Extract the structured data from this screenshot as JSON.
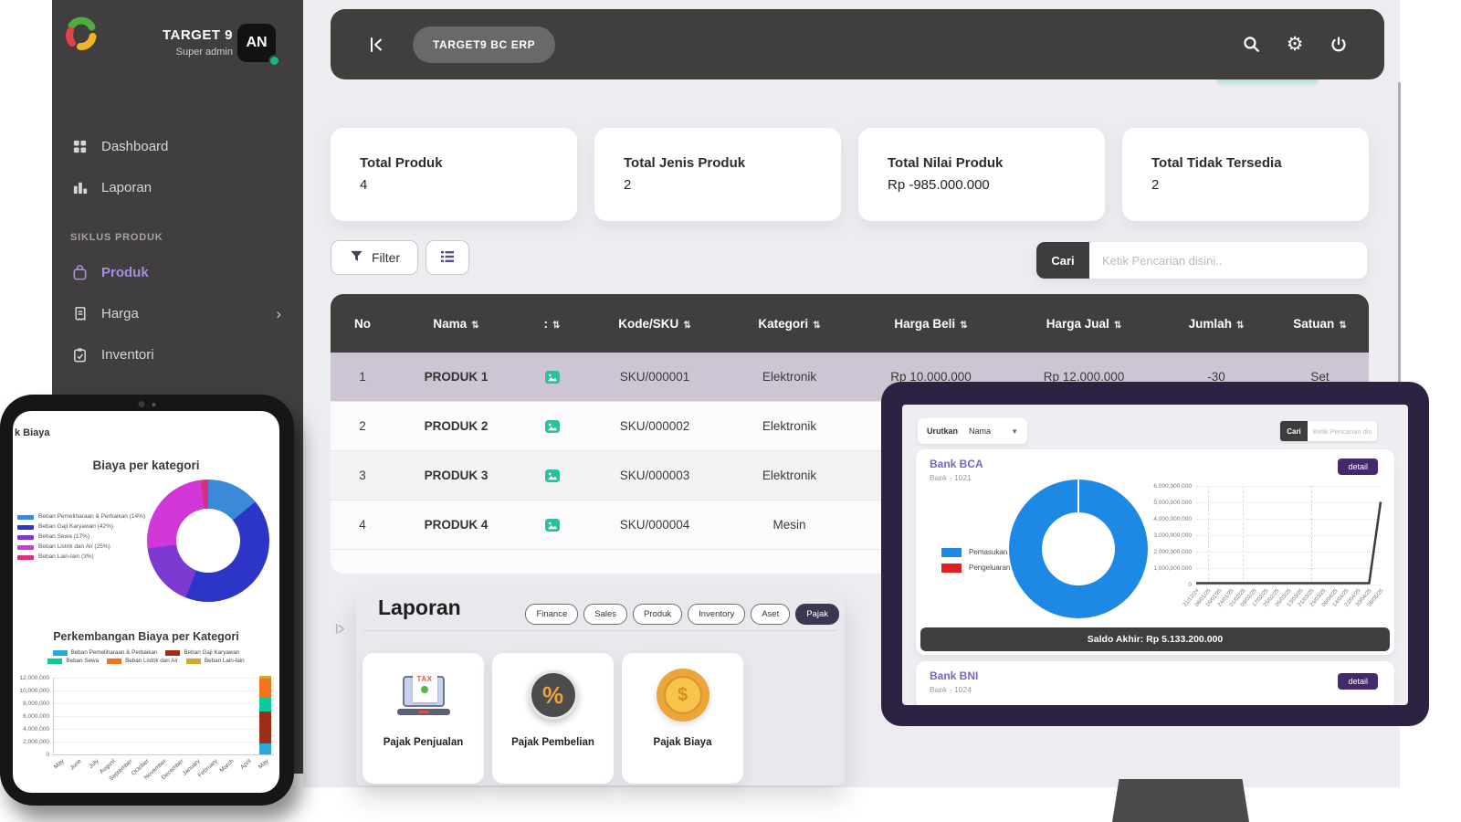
{
  "app": {
    "title_badge": "TARGET9 BC ERP"
  },
  "sidebar": {
    "company": "TARGET 9",
    "role": "Super admin",
    "avatar": "AN",
    "menu": [
      {
        "label": "Dashboard",
        "icon": "grid",
        "active": false
      },
      {
        "label": "Laporan",
        "icon": "bars",
        "active": false
      }
    ],
    "section": "SIKLUS PRODUK",
    "section_menu": [
      {
        "label": "Produk",
        "icon": "bag",
        "active": true,
        "submenu": false
      },
      {
        "label": "Harga",
        "icon": "receipt",
        "active": false,
        "submenu": true
      },
      {
        "label": "Inventori",
        "icon": "clipboard",
        "active": false,
        "submenu": false
      }
    ]
  },
  "summary_cards": [
    {
      "label": "Total Produk",
      "value": "4"
    },
    {
      "label": "Total Jenis Produk",
      "value": "2"
    },
    {
      "label": "Total Nilai Produk",
      "value": "Rp -985.000.000"
    },
    {
      "label": "Total Tidak Tersedia",
      "value": "2"
    }
  ],
  "toolbar": {
    "filter": "Filter",
    "cari": "Cari",
    "search_placeholder": "Ketik Pencarian disini.."
  },
  "table": {
    "columns": [
      {
        "label": "No",
        "sortable": false
      },
      {
        "label": "Nama",
        "sortable": true
      },
      {
        "label": ":",
        "sortable": true
      },
      {
        "label": "Kode/SKU",
        "sortable": true
      },
      {
        "label": "Kategori",
        "sortable": true
      },
      {
        "label": "Harga Beli",
        "sortable": true
      },
      {
        "label": "Harga Jual",
        "sortable": true
      },
      {
        "label": "Jumlah",
        "sortable": true
      },
      {
        "label": "Satuan",
        "sortable": true
      }
    ],
    "rows": [
      {
        "cells": [
          "1",
          "PRODUK 1",
          "image",
          "SKU/000001",
          "Elektronik",
          "Rp 10.000.000",
          "Rp 12.000.000",
          "-30",
          "Set"
        ],
        "highlight": true
      },
      {
        "cells": [
          "2",
          "PRODUK 2",
          "image",
          "SKU/000002",
          "Elektronik",
          "",
          "",
          "",
          ""
        ],
        "highlight": false
      },
      {
        "cells": [
          "3",
          "PRODUK 3",
          "image",
          "SKU/000003",
          "Elektronik",
          "",
          "",
          "",
          ""
        ],
        "highlight": false
      },
      {
        "cells": [
          "4",
          "PRODUK 4",
          "image",
          "SKU/000004",
          "Mesin",
          "",
          "",
          "",
          ""
        ],
        "highlight": false
      }
    ]
  },
  "laporan": {
    "title": "Laporan",
    "tabs": [
      {
        "label": "Finance",
        "active": false
      },
      {
        "label": "Sales",
        "active": false
      },
      {
        "label": "Produk",
        "active": false
      },
      {
        "label": "Inventory",
        "active": false
      },
      {
        "label": "Aset",
        "active": false
      },
      {
        "label": "Pajak",
        "active": true
      }
    ],
    "cards": [
      {
        "label": "Pajak Penjualan",
        "icon": "tax-laptop-icon"
      },
      {
        "label": "Pajak Pembelian",
        "icon": "tax-percent-icon"
      },
      {
        "label": "Pajak Biaya",
        "icon": "tax-coin-icon"
      }
    ]
  },
  "phone": {
    "header_partial": "k Biaya"
  },
  "monitor": {
    "sort_label": "Urutkan",
    "sort_value": "Nama",
    "cari": "Cari",
    "search_placeholder": "Ketik Pencarian disini..",
    "banks": [
      {
        "name": "Bank BCA",
        "account": "Bank - 1021",
        "detail": "detail",
        "saldo": "Saldo Akhir: Rp 5.133.200.000"
      },
      {
        "name": "Bank BNI",
        "account": "Bank - 1024",
        "detail": "detail"
      }
    ]
  },
  "chart_data": [
    {
      "id": "biaya_donut",
      "type": "pie",
      "donut": true,
      "title": "Biaya per kategori",
      "legend_position": "left",
      "slices": [
        {
          "label": "Beban Pemeliharaan & Perbaikan (14%)",
          "value": 14,
          "color": "#3a8ad8"
        },
        {
          "label": "Beban Gaji Karyawan (42%)",
          "value": 42,
          "color": "#2d35c8"
        },
        {
          "label": "Beban Sewa (17%)",
          "value": 17,
          "color": "#7d3ad2"
        },
        {
          "label": "Beban Listrik dan Air (25%)",
          "value": 25,
          "color": "#d238d8"
        },
        {
          "label": "Beban Lain-lain (3%)",
          "value": 3,
          "color": "#d8327f"
        }
      ]
    },
    {
      "id": "biaya_bar",
      "type": "bar",
      "stacked": true,
      "title": "Perkembangan Biaya per Kategori",
      "categories": [
        "May",
        "June",
        "July",
        "August",
        "September",
        "October",
        "November",
        "December",
        "January",
        "February",
        "March",
        "April",
        "May"
      ],
      "series": [
        {
          "name": "Beban Pemeliharaan & Perbaikan",
          "color": "#29a8dd",
          "values": [
            0,
            0,
            0,
            0,
            0,
            0,
            0,
            0,
            0,
            0,
            0,
            0,
            1700000
          ]
        },
        {
          "name": "Beban Gaji Karyawan",
          "color": "#9e2f16",
          "values": [
            0,
            0,
            0,
            0,
            0,
            0,
            0,
            0,
            0,
            0,
            0,
            0,
            5080000
          ]
        },
        {
          "name": "Beban Sewa",
          "color": "#0ec8a0",
          "values": [
            0,
            0,
            0,
            0,
            0,
            0,
            0,
            0,
            0,
            0,
            0,
            0,
            2060000
          ]
        },
        {
          "name": "Beban Listrik dan Air",
          "color": "#f3731f",
          "values": [
            0,
            0,
            0,
            0,
            0,
            0,
            0,
            0,
            0,
            0,
            0,
            0,
            3030000
          ]
        },
        {
          "name": "Beban Lain-lain",
          "color": "#cfa82c",
          "values": [
            0,
            0,
            0,
            0,
            0,
            0,
            0,
            0,
            0,
            0,
            0,
            0,
            360000
          ]
        }
      ],
      "ylim": [
        0,
        12000000
      ],
      "yticks": [
        "12,000,000",
        "10,000,000",
        "8,000,000",
        "6,000,000",
        "4,000,000",
        "2,000,000",
        "0"
      ],
      "grid": true,
      "legend_position": "top"
    },
    {
      "id": "bca_donut",
      "type": "pie",
      "donut": true,
      "legend_position": "left",
      "slices": [
        {
          "label": "Pemasukan (100%)",
          "value": 100,
          "color": "#1e88e5"
        },
        {
          "label": "Pengeluaran (0%)",
          "value": 0,
          "color": "#e02020"
        }
      ]
    },
    {
      "id": "bca_line",
      "type": "line",
      "x": [
        "31/12/24",
        "08/01/25",
        "16/01/25",
        "24/01/25",
        "01/02/25",
        "09/02/25",
        "17/02/25",
        "25/02/25",
        "05/03/25",
        "13/03/25",
        "21/03/25",
        "29/03/25",
        "06/04/25",
        "14/04/25",
        "22/04/25",
        "30/04/25",
        "08/05/25"
      ],
      "series": [
        {
          "name": "Saldo",
          "color": "#3b3b3b",
          "values": [
            0,
            0,
            0,
            0,
            0,
            0,
            0,
            0,
            0,
            0,
            0,
            0,
            0,
            0,
            0,
            0,
            5133200000
          ]
        }
      ],
      "ylim": [
        0,
        6000000000
      ],
      "yticks": [
        "6,000,000,000",
        "5,000,000,000",
        "4,000,000,000",
        "3,000,000,000",
        "2,000,000,000",
        "1,000,000,000",
        "0"
      ],
      "grid": true
    }
  ]
}
